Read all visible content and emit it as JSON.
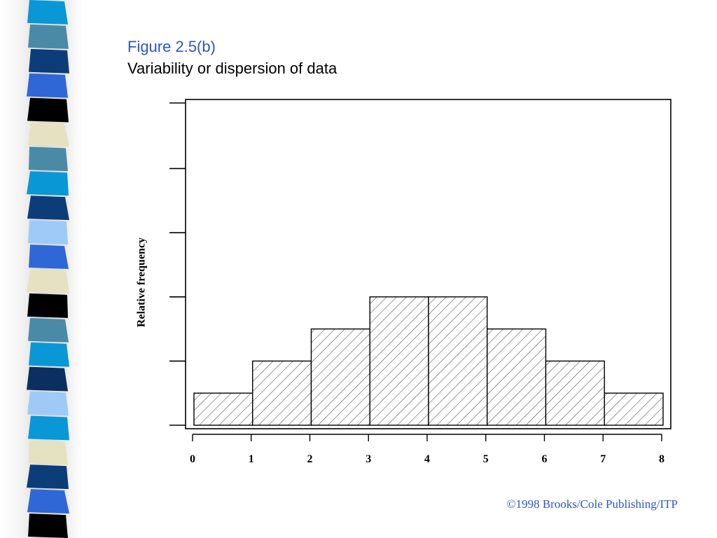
{
  "slide": {
    "figure_label": "Figure 2.5(b)",
    "subtitle": "Variability or dispersion of data",
    "copyright": "©1998 Brooks/Cole Publishing/ITP"
  },
  "colors": {
    "accent_blue": "#2f55c8",
    "strip_palette": [
      "#0a97d6",
      "#4b8aa6",
      "#0d3d78",
      "#2f67d6",
      "#000000",
      "#e4e2c0",
      "#9fcaf7",
      "#0b2f5e"
    ]
  },
  "decoration": {
    "strip_sequence": [
      "#0a97d6",
      "#4b8aa6",
      "#0d3d78",
      "#2f67d6",
      "#000000",
      "#e4e2c0",
      "#4b8aa6",
      "#0a97d6",
      "#0d3d78",
      "#9fcaf7",
      "#2f67d6",
      "#e4e2c0",
      "#000000",
      "#4b8aa6",
      "#0a97d6",
      "#0b2f5e",
      "#9fcaf7",
      "#0a97d6",
      "#e4e2c0",
      "#0d3d78",
      "#2f67d6",
      "#000000"
    ]
  },
  "chart_data": {
    "type": "bar",
    "style": "histogram",
    "fill_pattern": "diagonal-hatch",
    "ylabel": "Relative frequency",
    "xlabel": "",
    "x_ticks": [
      "0",
      "1",
      "2",
      "3",
      "4",
      "5",
      "6",
      "7",
      "8"
    ],
    "bins": [
      [
        0,
        1
      ],
      [
        1,
        2
      ],
      [
        2,
        3
      ],
      [
        3,
        4
      ],
      [
        4,
        5
      ],
      [
        5,
        6
      ],
      [
        6,
        7
      ],
      [
        7,
        8
      ]
    ],
    "values": [
      1,
      2,
      3,
      4,
      4,
      3,
      2,
      1
    ],
    "xlim": [
      0,
      8
    ],
    "ylim": [
      0,
      10
    ],
    "y_tick_count": 6,
    "y_tick_labels_shown": false,
    "grid": false,
    "legend": "none"
  }
}
